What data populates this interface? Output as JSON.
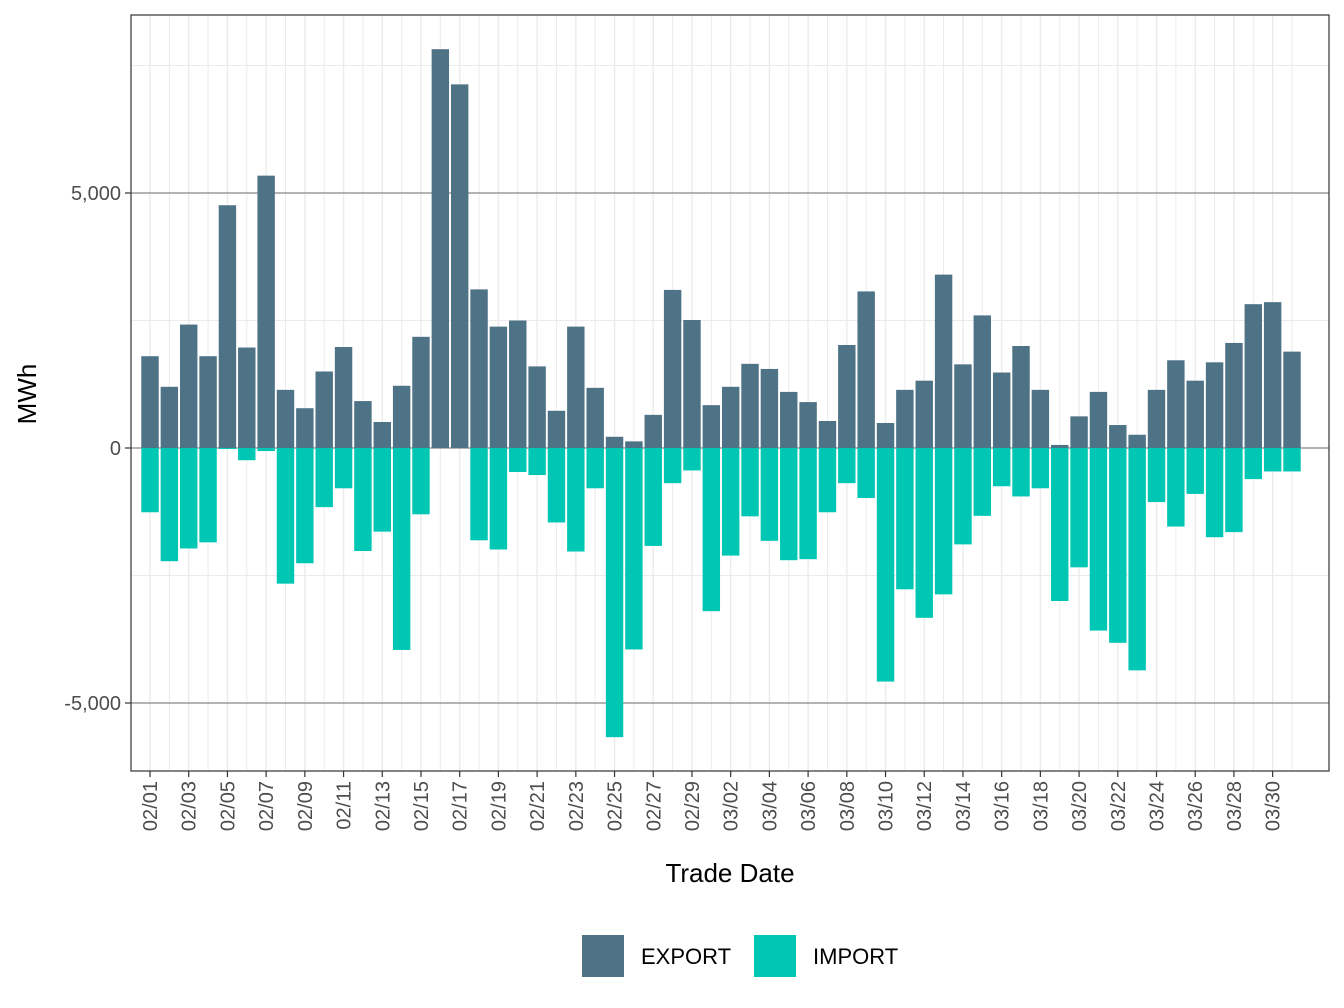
{
  "chart_data": {
    "type": "bar",
    "stacked": "diverging",
    "title": "",
    "xlabel": "Trade Date",
    "ylabel": "MWh",
    "ylim": [
      -6300,
      8000
    ],
    "y_ticks": [
      5000,
      0,
      -5000
    ],
    "y_tick_labels": [
      "5,000",
      "0",
      "-5,000"
    ],
    "y_minor_ticks": [
      7500,
      2500,
      -2500
    ],
    "grid": true,
    "legend_position": "bottom",
    "categories": [
      "02/01",
      "02/02",
      "02/03",
      "02/04",
      "02/05",
      "02/06",
      "02/07",
      "02/08",
      "02/09",
      "02/10",
      "02/11",
      "02/12",
      "02/13",
      "02/14",
      "02/15",
      "02/16",
      "02/17",
      "02/18",
      "02/19",
      "02/20",
      "02/21",
      "02/22",
      "02/23",
      "02/24",
      "02/25",
      "02/26",
      "02/27",
      "02/28",
      "02/29",
      "03/01",
      "03/02",
      "03/03",
      "03/04",
      "03/05",
      "03/06",
      "03/07",
      "03/08",
      "03/09",
      "03/10",
      "03/11",
      "03/12",
      "03/13",
      "03/14",
      "03/15",
      "03/16",
      "03/17",
      "03/18",
      "03/19",
      "03/20",
      "03/21",
      "03/22",
      "03/23",
      "03/24",
      "03/25",
      "03/26",
      "03/27",
      "03/28",
      "03/29",
      "03/30",
      "03/31"
    ],
    "x_tick_labels": [
      "02/01",
      "02/03",
      "02/05",
      "02/07",
      "02/09",
      "02/11",
      "02/13",
      "02/15",
      "02/17",
      "02/19",
      "02/21",
      "02/23",
      "02/25",
      "02/27",
      "02/29",
      "03/02",
      "03/04",
      "03/06",
      "03/08",
      "03/10",
      "03/12",
      "03/14",
      "03/16",
      "03/18",
      "03/20",
      "03/22",
      "03/24",
      "03/26",
      "03/28",
      "03/30"
    ],
    "series": [
      {
        "name": "EXPORT",
        "color": "#4E7286",
        "values": [
          1800,
          1200,
          2420,
          1800,
          4760,
          1970,
          5340,
          1140,
          780,
          1500,
          1980,
          920,
          510,
          1220,
          2180,
          7820,
          7130,
          3110,
          2380,
          2500,
          1600,
          730,
          2380,
          1180,
          220,
          130,
          650,
          3100,
          2510,
          840,
          1200,
          1650,
          1550,
          1100,
          900,
          530,
          2020,
          3070,
          490,
          1140,
          1320,
          3400,
          1640,
          2600,
          1480,
          2000,
          1140,
          60,
          620,
          1100,
          450,
          260,
          1140,
          1720,
          1320,
          1680,
          2060,
          2820,
          2860,
          1890
        ]
      },
      {
        "name": "IMPORT",
        "color": "#00C7B3",
        "values": [
          -1260,
          -2220,
          -1970,
          -1850,
          -20,
          -240,
          -60,
          -2660,
          -2260,
          -1160,
          -790,
          -2020,
          -1640,
          -3960,
          -1300,
          0,
          0,
          -1810,
          -1990,
          -470,
          -530,
          -1460,
          -2030,
          -790,
          -5670,
          -3950,
          -1920,
          -690,
          -440,
          -3200,
          -2110,
          -1340,
          -1820,
          -2200,
          -2180,
          -1260,
          -690,
          -980,
          -4580,
          -2770,
          -3330,
          -2870,
          -1890,
          -1330,
          -750,
          -950,
          -790,
          -3000,
          -2340,
          -3580,
          -3820,
          -4360,
          -1060,
          -1540,
          -900,
          -1750,
          -1650,
          -610,
          -460,
          -460
        ]
      }
    ]
  }
}
